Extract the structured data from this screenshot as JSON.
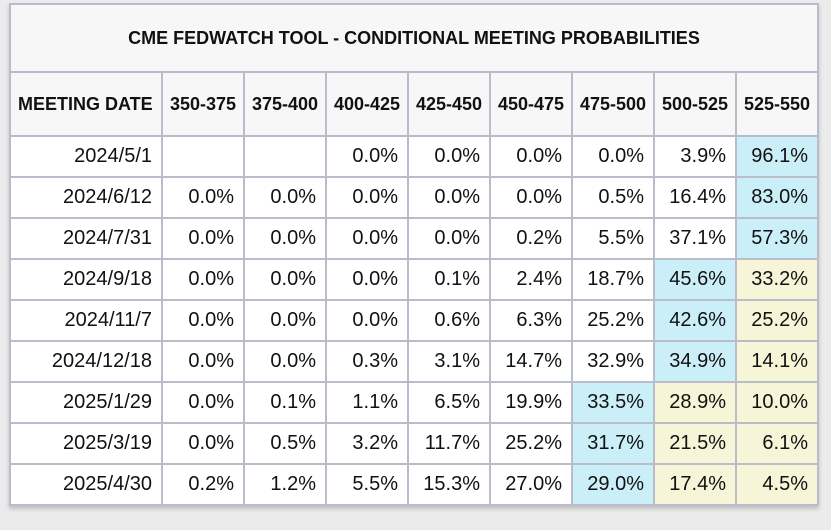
{
  "title": "CME FEDWATCH TOOL - CONDITIONAL MEETING PROBABILITIES",
  "columns": [
    "MEETING DATE",
    "350-375",
    "375-400",
    "400-425",
    "425-450",
    "450-475",
    "475-500",
    "500-525",
    "525-550"
  ],
  "rows": [
    {
      "date": "2024/5/1",
      "values": [
        "",
        "",
        "0.0%",
        "0.0%",
        "0.0%",
        "0.0%",
        "3.9%",
        "96.1%"
      ],
      "highlights": [
        "",
        "",
        "",
        "",
        "",
        "",
        "",
        "cyan"
      ]
    },
    {
      "date": "2024/6/12",
      "values": [
        "0.0%",
        "0.0%",
        "0.0%",
        "0.0%",
        "0.0%",
        "0.5%",
        "16.4%",
        "83.0%"
      ],
      "highlights": [
        "",
        "",
        "",
        "",
        "",
        "",
        "",
        "cyan"
      ]
    },
    {
      "date": "2024/7/31",
      "values": [
        "0.0%",
        "0.0%",
        "0.0%",
        "0.0%",
        "0.2%",
        "5.5%",
        "37.1%",
        "57.3%"
      ],
      "highlights": [
        "",
        "",
        "",
        "",
        "",
        "",
        "",
        "cyan"
      ]
    },
    {
      "date": "2024/9/18",
      "values": [
        "0.0%",
        "0.0%",
        "0.0%",
        "0.1%",
        "2.4%",
        "18.7%",
        "45.6%",
        "33.2%"
      ],
      "highlights": [
        "",
        "",
        "",
        "",
        "",
        "",
        "cyan",
        "yellow"
      ]
    },
    {
      "date": "2024/11/7",
      "values": [
        "0.0%",
        "0.0%",
        "0.0%",
        "0.6%",
        "6.3%",
        "25.2%",
        "42.6%",
        "25.2%"
      ],
      "highlights": [
        "",
        "",
        "",
        "",
        "",
        "",
        "cyan",
        "yellow"
      ]
    },
    {
      "date": "2024/12/18",
      "values": [
        "0.0%",
        "0.0%",
        "0.3%",
        "3.1%",
        "14.7%",
        "32.9%",
        "34.9%",
        "14.1%"
      ],
      "highlights": [
        "",
        "",
        "",
        "",
        "",
        "",
        "cyan",
        "yellow"
      ]
    },
    {
      "date": "2025/1/29",
      "values": [
        "0.0%",
        "0.1%",
        "1.1%",
        "6.5%",
        "19.9%",
        "33.5%",
        "28.9%",
        "10.0%"
      ],
      "highlights": [
        "",
        "",
        "",
        "",
        "",
        "cyan",
        "yellow",
        "yellow"
      ]
    },
    {
      "date": "2025/3/19",
      "values": [
        "0.0%",
        "0.5%",
        "3.2%",
        "11.7%",
        "25.2%",
        "31.7%",
        "21.5%",
        "6.1%"
      ],
      "highlights": [
        "",
        "",
        "",
        "",
        "",
        "cyan",
        "yellow",
        "yellow"
      ]
    },
    {
      "date": "2025/4/30",
      "values": [
        "0.2%",
        "1.2%",
        "5.5%",
        "15.3%",
        "27.0%",
        "29.0%",
        "17.4%",
        "4.5%"
      ],
      "highlights": [
        "",
        "",
        "",
        "",
        "",
        "cyan",
        "yellow",
        "yellow"
      ]
    }
  ],
  "colors": {
    "highlight_cyan": "#cbeff8",
    "highlight_yellow": "#f6f5d8",
    "header_background": "#f7f7f8",
    "cell_border": "#b8bdc9",
    "page_background": "#ebebeb"
  }
}
